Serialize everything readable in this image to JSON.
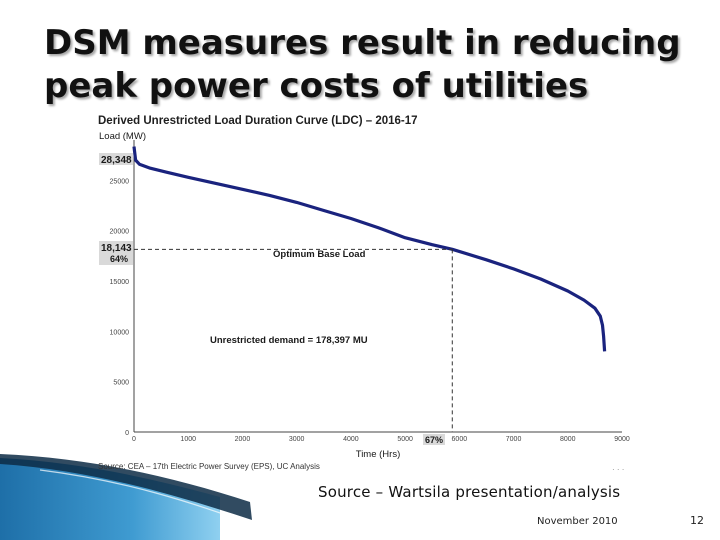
{
  "slide": {
    "title_line1": "DSM measures result in reducing",
    "title_line2": "peak power costs of utilities",
    "caption": "Source – Wartsila presentation/analysis",
    "date": "November 2010",
    "page": "12"
  },
  "chart_data": {
    "type": "line",
    "title": "Derived Unrestricted Load Duration Curve (LDC) – 2016-17",
    "ylabel": "Load (MW)",
    "xlabel": "Time (Hrs)",
    "x_ticks": [
      "0",
      "1000",
      "2000",
      "3000",
      "4000",
      "5000",
      "6000",
      "7000",
      "8000",
      "9000"
    ],
    "y_ticks": [
      "0",
      "5000",
      "10000",
      "15000",
      "20000",
      "25000"
    ],
    "xlim": [
      0,
      9000
    ],
    "ylim": [
      0,
      29000
    ],
    "grid": false,
    "series": [
      {
        "x": [
          0,
          30,
          100,
          300,
          600,
          1000,
          1500,
          2000,
          2500,
          3000,
          3500,
          4000,
          4500,
          5000,
          5500,
          5870,
          6500,
          7000,
          7500,
          8000,
          8300,
          8500,
          8600,
          8640,
          8660,
          8680
        ],
        "y": [
          28348,
          27000,
          26600,
          26200,
          25800,
          25300,
          24700,
          24100,
          23500,
          22800,
          22000,
          21200,
          20300,
          19300,
          18600,
          18143,
          17100,
          16200,
          15200,
          14000,
          13100,
          12300,
          11500,
          10600,
          9500,
          8000
        ]
      }
    ],
    "annotations": {
      "peak_label": "28,348",
      "base_label": "18,143",
      "base_pct": "64%",
      "base_line_label": "Optimum Base Load",
      "demand_label": "Unrestricted demand = 178,397 MU",
      "time_pct": "67%",
      "base_y": 18143,
      "base_x": 5870,
      "peak_y": 28348
    },
    "source_note": "Source: CEA – 17th Electric Power Survey (EPS), UC Analysis"
  },
  "colors": {
    "curve": "#1a237e",
    "accent": "#1e6fa8",
    "label_bg": "#d9d9d9"
  }
}
